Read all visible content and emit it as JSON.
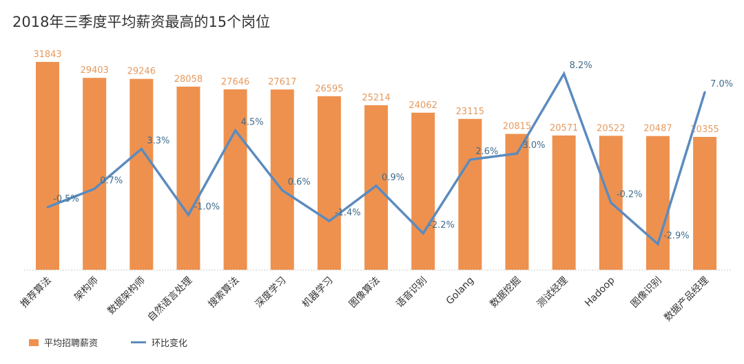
{
  "chart_data": {
    "type": "bar+line",
    "title": "2018年三季度平均薪资最高的15个岗位",
    "categories": [
      "推荐算法",
      "架构师",
      "数据架构师",
      "自然语言处理",
      "搜索算法",
      "深度学习",
      "机器学习",
      "图像算法",
      "语音识别",
      "Golang",
      "数据挖掘",
      "测试经理",
      "Hadoop",
      "图像识别",
      "数据产品经理"
    ],
    "series": [
      {
        "name": "平均招聘薪资",
        "type": "bar",
        "color": "#EE914F",
        "values": [
          31843,
          29403,
          29246,
          28058,
          27646,
          27617,
          26595,
          25214,
          24062,
          23115,
          20815,
          20571,
          20522,
          20487,
          20355
        ]
      },
      {
        "name": "环比变化",
        "type": "line",
        "color": "#5B8BBE",
        "unit": "%",
        "values": [
          -0.5,
          0.7,
          3.3,
          -1.0,
          4.5,
          0.6,
          -1.4,
          0.9,
          -2.2,
          2.6,
          3.0,
          8.2,
          -0.2,
          -2.9,
          7.0
        ]
      }
    ],
    "bar_ylim": [
      0,
      32000
    ],
    "line_ylim": [
      -4.5,
      8.2
    ],
    "grid": false,
    "legend_position": "bottom-left"
  }
}
